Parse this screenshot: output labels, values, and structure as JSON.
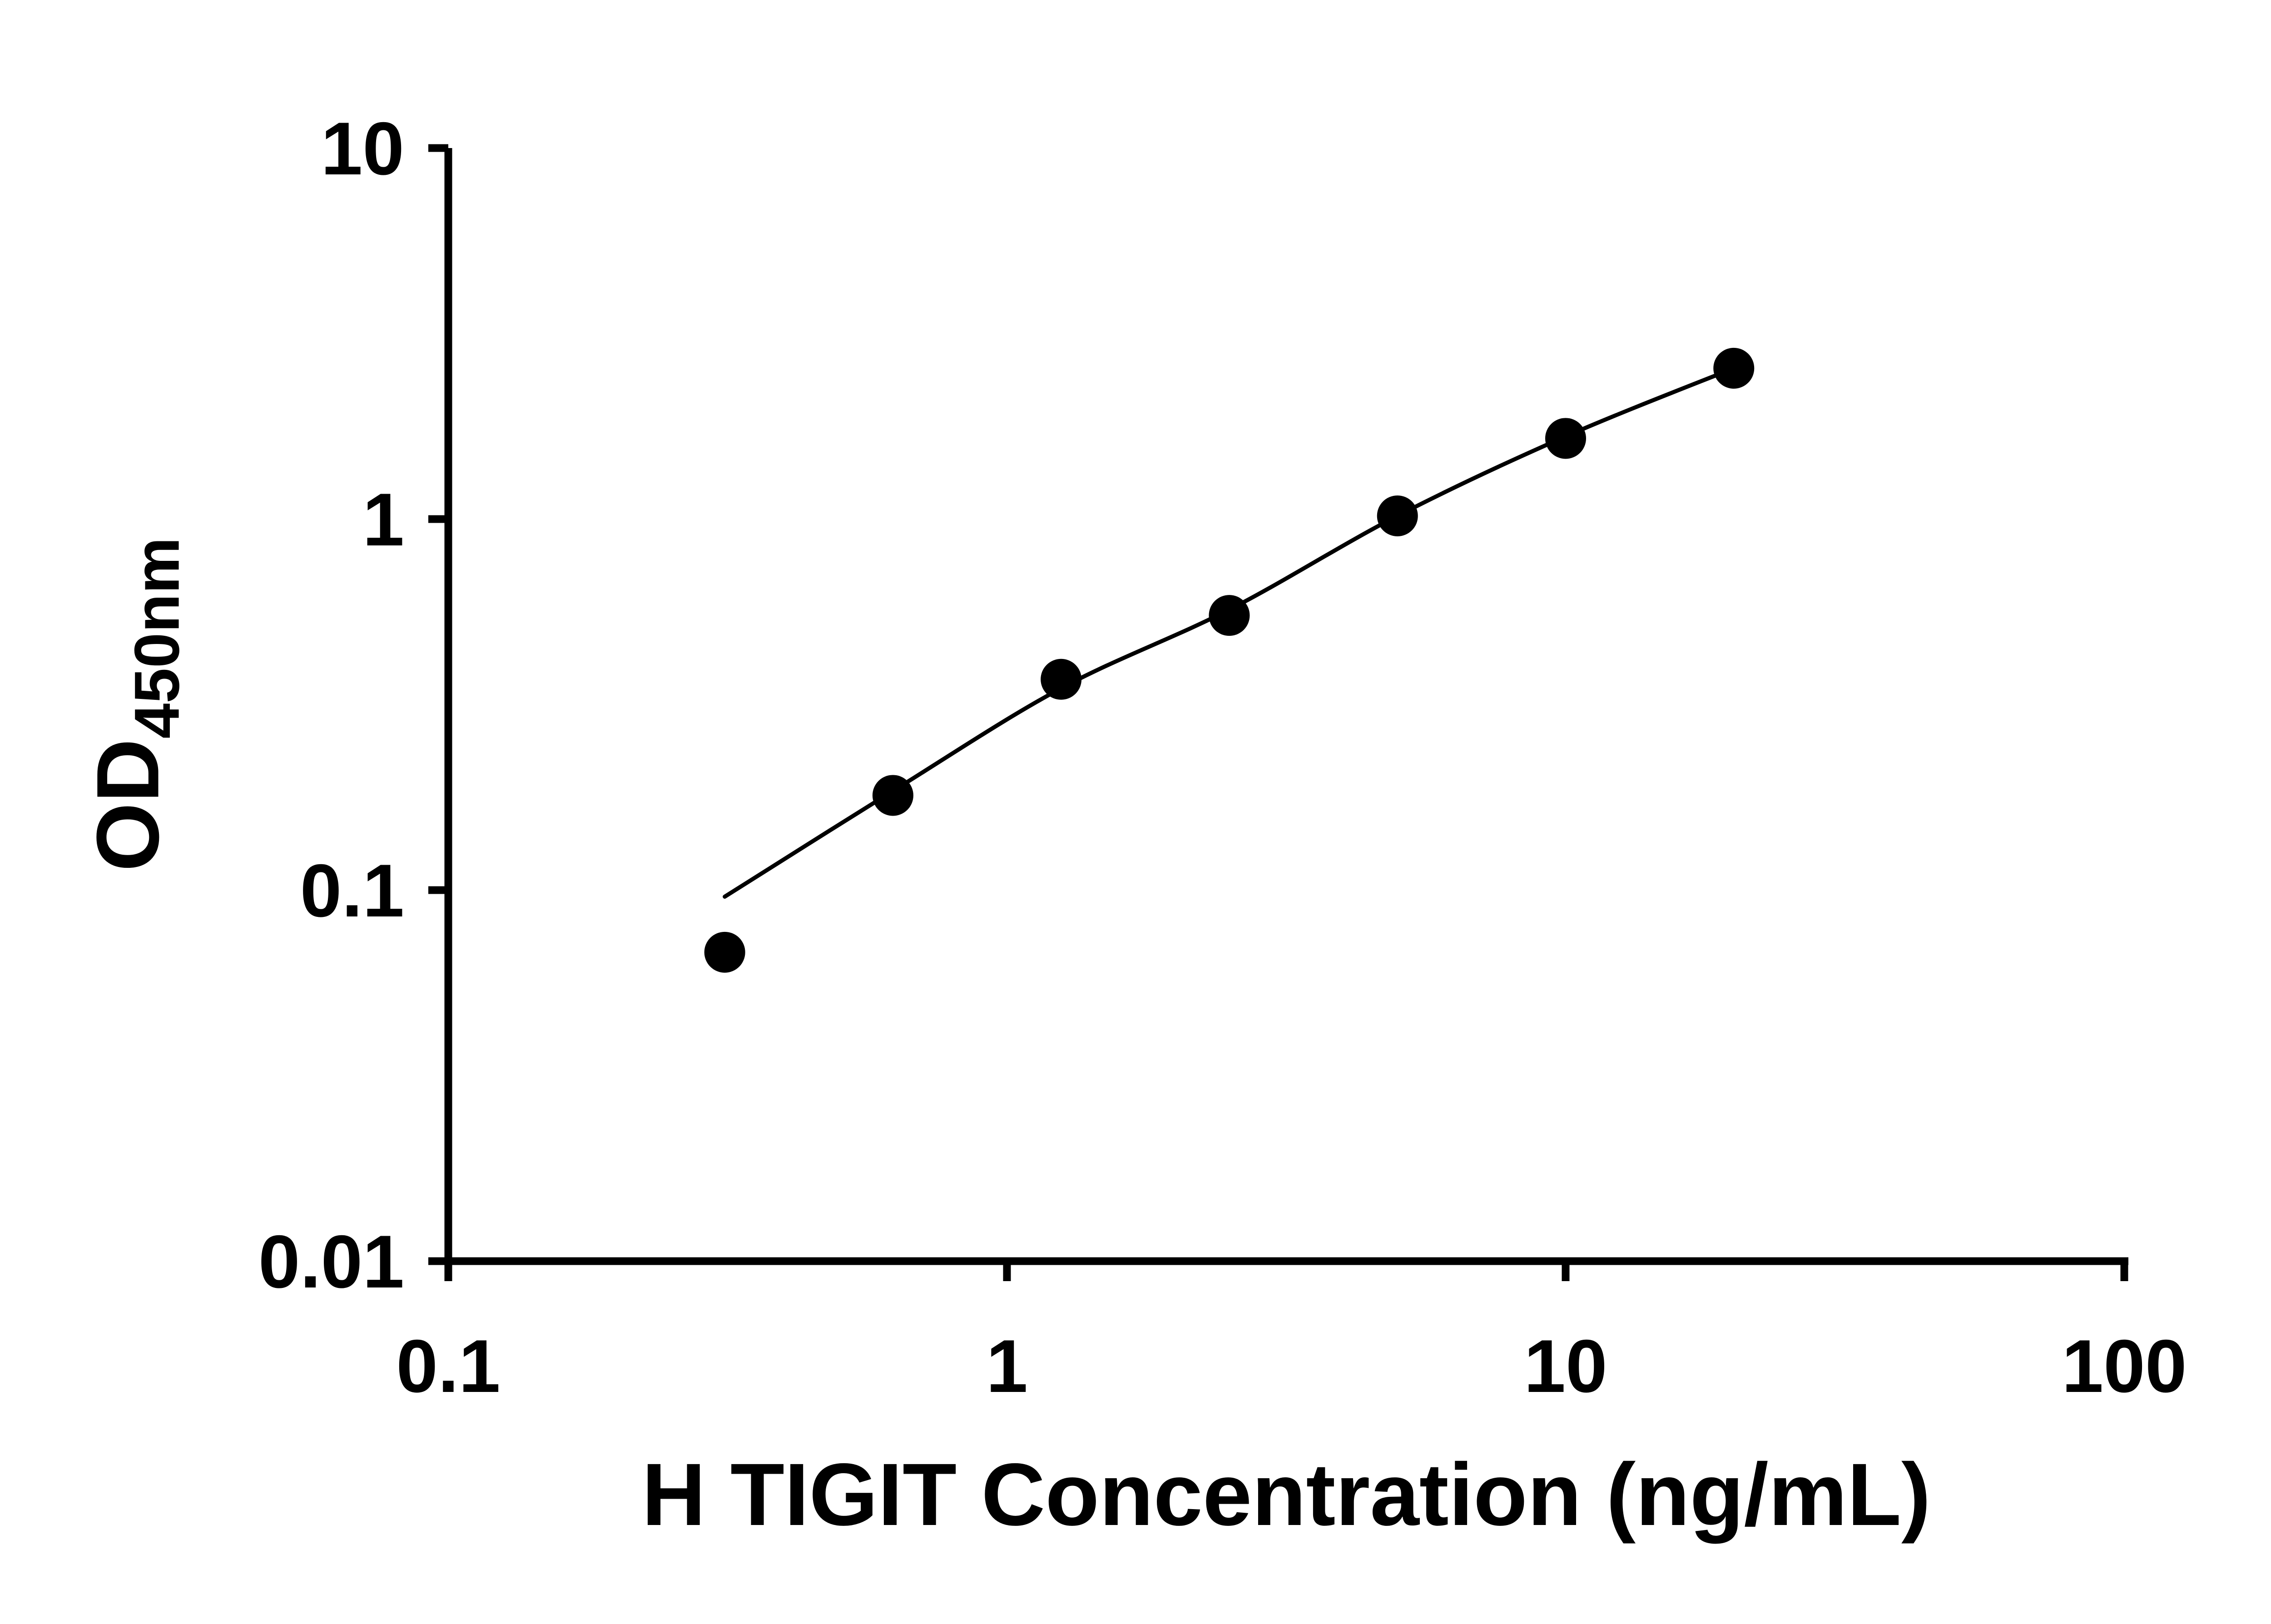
{
  "chart_data": {
    "type": "scatter",
    "subtype": "standard-curve",
    "title": "",
    "xlabel": "H TIGIT Concentration (ng/mL)",
    "ylabel": "OD",
    "ylabel_subscript": "450nm",
    "x_scale": "log10",
    "y_scale": "log10",
    "xlim": [
      0.1,
      100
    ],
    "ylim": [
      0.01,
      10
    ],
    "x_ticks": [
      {
        "value": 0.1,
        "label": "0.1"
      },
      {
        "value": 1,
        "label": "1"
      },
      {
        "value": 10,
        "label": "10"
      },
      {
        "value": 100,
        "label": "100"
      }
    ],
    "y_ticks": [
      {
        "value": 10,
        "label": "10"
      },
      {
        "value": 1,
        "label": "1"
      },
      {
        "value": 0.1,
        "label": "0.1"
      },
      {
        "value": 0.01,
        "label": "0.01"
      }
    ],
    "points": [
      {
        "x": 0.3125,
        "y": 0.068
      },
      {
        "x": 0.625,
        "y": 0.18
      },
      {
        "x": 1.25,
        "y": 0.37
      },
      {
        "x": 2.5,
        "y": 0.55
      },
      {
        "x": 5,
        "y": 1.02
      },
      {
        "x": 10,
        "y": 1.65
      },
      {
        "x": 20,
        "y": 2.55
      }
    ],
    "fit_curve": [
      {
        "x": 0.3125,
        "y": 0.096
      },
      {
        "x": 0.625,
        "y": 0.185
      },
      {
        "x": 1.25,
        "y": 0.35
      },
      {
        "x": 2.5,
        "y": 0.57
      },
      {
        "x": 5,
        "y": 1.02
      },
      {
        "x": 10,
        "y": 1.67
      },
      {
        "x": 20,
        "y": 2.55
      }
    ],
    "marker_color": "#000000",
    "curve_color": "#000000",
    "axis_color": "#000000",
    "background": "#ffffff",
    "grid": false,
    "legend": "none"
  }
}
